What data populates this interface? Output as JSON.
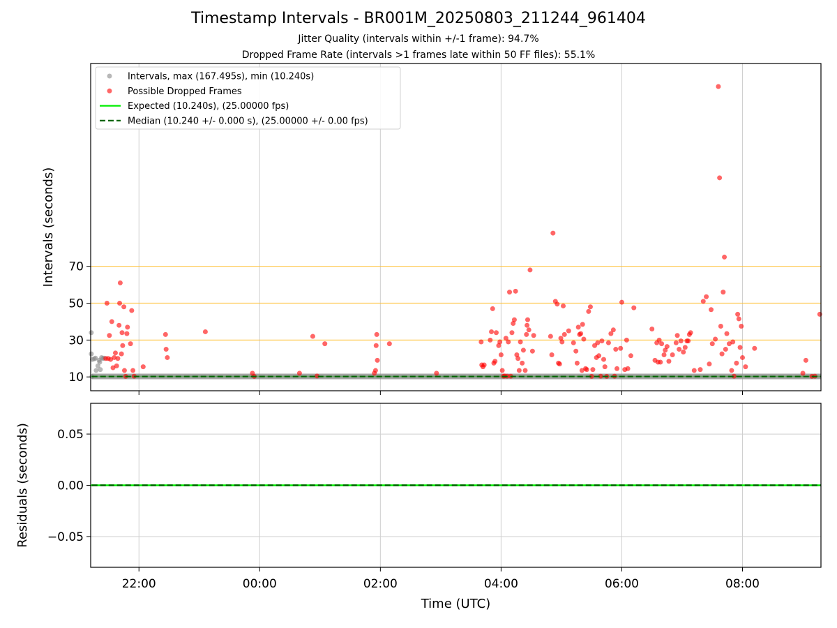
{
  "figure": {
    "title": "Timestamp Intervals - BR001M_20250803_211244_961404",
    "subtitle1": "Jitter Quality (intervals within +/-1 frame): 94.7%",
    "subtitle2": "Dropped Frame Rate (intervals >1 frames late within 50 FF files): 55.1%"
  },
  "colors": {
    "intervals": "#888888",
    "dropped": "#ff0000",
    "expected": "#00ee00",
    "median": "#006400",
    "threshold_lines": "#ffc030",
    "grid": "#cfcfcf"
  },
  "chart_data": [
    {
      "type": "scatter",
      "panel": "top",
      "xlabel": "",
      "ylabel": "Intervals (seconds)",
      "x_unit": "hours since 00:00 UTC (negative = previous day)",
      "xlim": [
        -2.8,
        9.3
      ],
      "ylim": [
        2.5,
        180
      ],
      "y_ticks": [
        10,
        30,
        50,
        70
      ],
      "x_ticks": [
        -2,
        0,
        2,
        4,
        6,
        8
      ],
      "x_tick_labels": [
        "22:00",
        "00:00",
        "02:00",
        "04:00",
        "06:00",
        "08:00"
      ],
      "grid": "vertical",
      "horizontal_reference_lines": [
        30,
        50,
        70
      ],
      "legend_position": "upper left",
      "legend": [
        {
          "label": "Intervals, max (167.495s), min (10.240s)",
          "kind": "marker",
          "color": "#888888"
        },
        {
          "label": "Possible Dropped Frames",
          "kind": "marker",
          "color": "#ff0000"
        },
        {
          "label": "Expected (10.240s), (25.00000 fps)",
          "kind": "solid-line",
          "color": "#00ee00"
        },
        {
          "label": "Median (10.240 +/- 0.000 s), (25.00000 +/- 0.00 fps)",
          "kind": "dashed-line",
          "color": "#006400"
        }
      ],
      "series": [
        {
          "name": "Intervals, max (167.495s), min (10.240s)",
          "points": [
            [
              -2.78,
              10.24
            ],
            [
              -2.79,
              22.5
            ],
            [
              -2.79,
              34.0
            ],
            [
              -2.77,
              19.5
            ],
            [
              -2.74,
              19.8
            ],
            [
              -2.72,
              20.2
            ],
            [
              -2.71,
              13.5
            ],
            [
              -2.68,
              16.0
            ],
            [
              -2.66,
              19.0
            ],
            [
              -2.65,
              18.0
            ],
            [
              -2.64,
              14.0
            ],
            [
              -2.62,
              20.5
            ],
            [
              -2.6,
              20.0
            ],
            [
              -2.58,
              20.2
            ]
          ]
        },
        {
          "name": "Possible Dropped Frames",
          "points": [
            [
              -2.55,
              20.0
            ],
            [
              -2.53,
              50.0
            ],
            [
              -2.51,
              20.0
            ],
            [
              -2.49,
              32.5
            ],
            [
              -2.47,
              19.5
            ],
            [
              -2.45,
              40.0
            ],
            [
              -2.43,
              15.0
            ],
            [
              -2.41,
              20.5
            ],
            [
              -2.39,
              23.0
            ],
            [
              -2.37,
              16.0
            ],
            [
              -2.35,
              20.0
            ],
            [
              -2.33,
              38.0
            ],
            [
              -2.32,
              50.0
            ],
            [
              -2.31,
              61.0
            ],
            [
              -2.29,
              22.5
            ],
            [
              -2.28,
              34.0
            ],
            [
              -2.27,
              27.0
            ],
            [
              -2.25,
              48.0
            ],
            [
              -2.24,
              13.5
            ],
            [
              -2.22,
              10.3
            ],
            [
              -2.2,
              33.5
            ],
            [
              -2.19,
              37.0
            ],
            [
              -2.14,
              28.0
            ],
            [
              -2.12,
              46.0
            ],
            [
              -2.1,
              13.5
            ],
            [
              -2.08,
              10.4
            ],
            [
              -1.93,
              15.5
            ],
            [
              -1.56,
              33.0
            ],
            [
              -1.55,
              25.0
            ],
            [
              -1.53,
              20.5
            ],
            [
              -0.9,
              34.5
            ],
            [
              -0.12,
              12.0
            ],
            [
              -0.09,
              10.3
            ],
            [
              0.66,
              12.0
            ],
            [
              0.88,
              32.0
            ],
            [
              0.95,
              10.5
            ],
            [
              1.08,
              28.0
            ],
            [
              1.9,
              12.0
            ],
            [
              1.92,
              13.5
            ],
            [
              1.93,
              27.0
            ],
            [
              1.94,
              33.0
            ],
            [
              1.95,
              19.0
            ],
            [
              2.15,
              28.0
            ],
            [
              2.93,
              12.0
            ],
            [
              3.67,
              29.0
            ],
            [
              3.68,
              16.5
            ],
            [
              3.7,
              15.5
            ],
            [
              3.72,
              16.5
            ],
            [
              3.82,
              30.0
            ],
            [
              3.84,
              34.5
            ],
            [
              3.86,
              47.0
            ],
            [
              3.88,
              17.5
            ],
            [
              3.9,
              18.5
            ],
            [
              3.92,
              34.0
            ],
            [
              3.96,
              27.0
            ],
            [
              3.98,
              29.0
            ],
            [
              4.0,
              22.0
            ],
            [
              4.02,
              13.5
            ],
            [
              4.04,
              10.4
            ],
            [
              4.06,
              10.5
            ],
            [
              4.08,
              31.0
            ],
            [
              4.1,
              10.4
            ],
            [
              4.12,
              29.0
            ],
            [
              4.14,
              56.0
            ],
            [
              4.16,
              10.4
            ],
            [
              4.18,
              34.0
            ],
            [
              4.2,
              39.0
            ],
            [
              4.22,
              41.0
            ],
            [
              4.24,
              56.5
            ],
            [
              4.26,
              22.0
            ],
            [
              4.28,
              20.0
            ],
            [
              4.3,
              13.5
            ],
            [
              4.32,
              29.0
            ],
            [
              4.35,
              17.5
            ],
            [
              4.37,
              24.5
            ],
            [
              4.4,
              13.5
            ],
            [
              4.42,
              33.0
            ],
            [
              4.43,
              38.0
            ],
            [
              4.44,
              41.0
            ],
            [
              4.46,
              35.5
            ],
            [
              4.48,
              68.0
            ],
            [
              4.52,
              24.0
            ],
            [
              4.54,
              32.5
            ],
            [
              4.82,
              32.0
            ],
            [
              4.84,
              22.0
            ],
            [
              4.86,
              88.0
            ],
            [
              4.9,
              51.0
            ],
            [
              4.93,
              49.5
            ],
            [
              4.95,
              17.5
            ],
            [
              4.97,
              17.0
            ],
            [
              4.99,
              31.0
            ],
            [
              5.01,
              29.0
            ],
            [
              5.03,
              48.5
            ],
            [
              5.05,
              33.0
            ],
            [
              5.12,
              35.0
            ],
            [
              5.2,
              28.5
            ],
            [
              5.24,
              24.0
            ],
            [
              5.26,
              17.5
            ],
            [
              5.28,
              37.0
            ],
            [
              5.3,
              33.0
            ],
            [
              5.32,
              33.5
            ],
            [
              5.34,
              13.5
            ],
            [
              5.35,
              38.5
            ],
            [
              5.37,
              30.5
            ],
            [
              5.4,
              14.5
            ],
            [
              5.42,
              14.0
            ],
            [
              5.45,
              45.5
            ],
            [
              5.48,
              48.0
            ],
            [
              5.5,
              10.3
            ],
            [
              5.52,
              14.0
            ],
            [
              5.55,
              27.0
            ],
            [
              5.58,
              20.5
            ],
            [
              5.6,
              28.5
            ],
            [
              5.62,
              21.5
            ],
            [
              5.65,
              10.4
            ],
            [
              5.67,
              29.5
            ],
            [
              5.7,
              19.5
            ],
            [
              5.72,
              15.5
            ],
            [
              5.75,
              10.3
            ],
            [
              5.78,
              28.5
            ],
            [
              5.82,
              33.5
            ],
            [
              5.86,
              35.5
            ],
            [
              5.88,
              10.4
            ],
            [
              5.9,
              25.0
            ],
            [
              5.92,
              14.5
            ],
            [
              5.98,
              25.5
            ],
            [
              6.0,
              50.5
            ],
            [
              6.05,
              14.0
            ],
            [
              6.08,
              30.0
            ],
            [
              6.1,
              14.5
            ],
            [
              6.15,
              21.5
            ],
            [
              6.2,
              47.5
            ],
            [
              6.5,
              36.0
            ],
            [
              6.55,
              19.0
            ],
            [
              6.58,
              28.5
            ],
            [
              6.6,
              18.0
            ],
            [
              6.62,
              30.0
            ],
            [
              6.64,
              18.0
            ],
            [
              6.66,
              28.0
            ],
            [
              6.7,
              22.0
            ],
            [
              6.72,
              24.5
            ],
            [
              6.75,
              26.5
            ],
            [
              6.78,
              18.5
            ],
            [
              6.84,
              22.0
            ],
            [
              6.9,
              28.5
            ],
            [
              6.92,
              32.5
            ],
            [
              6.95,
              25.0
            ],
            [
              6.98,
              29.5
            ],
            [
              7.02,
              23.5
            ],
            [
              7.05,
              26.0
            ],
            [
              7.08,
              29.5
            ],
            [
              7.1,
              29.5
            ],
            [
              7.12,
              33.0
            ],
            [
              7.14,
              34.0
            ],
            [
              7.2,
              13.5
            ],
            [
              7.3,
              14.0
            ],
            [
              7.35,
              51.0
            ],
            [
              7.4,
              53.5
            ],
            [
              7.45,
              17.0
            ],
            [
              7.48,
              46.5
            ],
            [
              7.5,
              28.0
            ],
            [
              7.55,
              30.5
            ],
            [
              7.6,
              167.5
            ],
            [
              7.62,
              118.0
            ],
            [
              7.64,
              37.5
            ],
            [
              7.66,
              22.5
            ],
            [
              7.68,
              56.0
            ],
            [
              7.7,
              75.0
            ],
            [
              7.72,
              25.0
            ],
            [
              7.74,
              33.5
            ],
            [
              7.78,
              28.0
            ],
            [
              7.82,
              13.5
            ],
            [
              7.84,
              29.0
            ],
            [
              7.86,
              10.4
            ],
            [
              7.9,
              17.5
            ],
            [
              7.92,
              44.0
            ],
            [
              7.94,
              41.5
            ],
            [
              7.96,
              26.0
            ],
            [
              7.98,
              37.5
            ],
            [
              8.0,
              20.5
            ],
            [
              8.05,
              15.5
            ],
            [
              8.2,
              25.5
            ],
            [
              9.0,
              12.0
            ],
            [
              9.05,
              19.0
            ],
            [
              9.15,
              10.3
            ],
            [
              9.2,
              10.4
            ],
            [
              9.28,
              44.0
            ]
          ]
        },
        {
          "name": "Expected (10.240s), (25.00000 fps)",
          "y": 10.24,
          "x_range": [
            -2.8,
            9.3
          ]
        },
        {
          "name": "Median (10.240 +/- 0.000 s), (25.00000 +/- 0.00 fps)",
          "y": 10.24,
          "x_range": [
            -2.8,
            9.3
          ]
        }
      ]
    },
    {
      "type": "line",
      "panel": "bottom",
      "xlabel": "Time (UTC)",
      "ylabel": "Residuals (seconds)",
      "xlim": [
        -2.8,
        9.3
      ],
      "ylim": [
        -0.08,
        0.08
      ],
      "y_ticks": [
        0.05,
        0.0,
        -0.05
      ],
      "y_tick_labels": [
        "0.05",
        "0.00",
        "−0.05"
      ],
      "x_ticks": [
        -2,
        0,
        2,
        4,
        6,
        8
      ],
      "x_tick_labels": [
        "22:00",
        "00:00",
        "02:00",
        "04:00",
        "06:00",
        "08:00"
      ],
      "grid": "both",
      "series": [
        {
          "name": "residuals",
          "y": 0.0,
          "x_range": [
            -2.8,
            9.3
          ]
        }
      ]
    }
  ]
}
